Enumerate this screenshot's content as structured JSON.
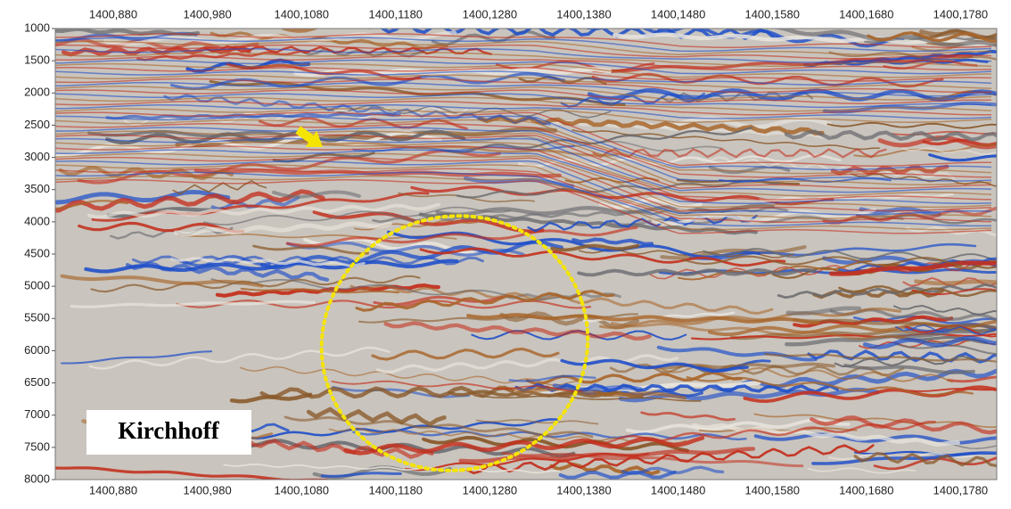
{
  "x_axis": {
    "labels": [
      "1400,880",
      "1400,980",
      "1400,1080",
      "1400,1180",
      "1400,1280",
      "1400,1380",
      "1400,1480",
      "1400,1580",
      "1400,1680",
      "1400,1780"
    ]
  },
  "y_axis": {
    "ticks": [
      1000,
      1500,
      2000,
      2500,
      3000,
      3500,
      4000,
      4500,
      5000,
      5500,
      6000,
      6500,
      7000,
      7500,
      8000
    ]
  },
  "label": "Kirchhoff"
}
